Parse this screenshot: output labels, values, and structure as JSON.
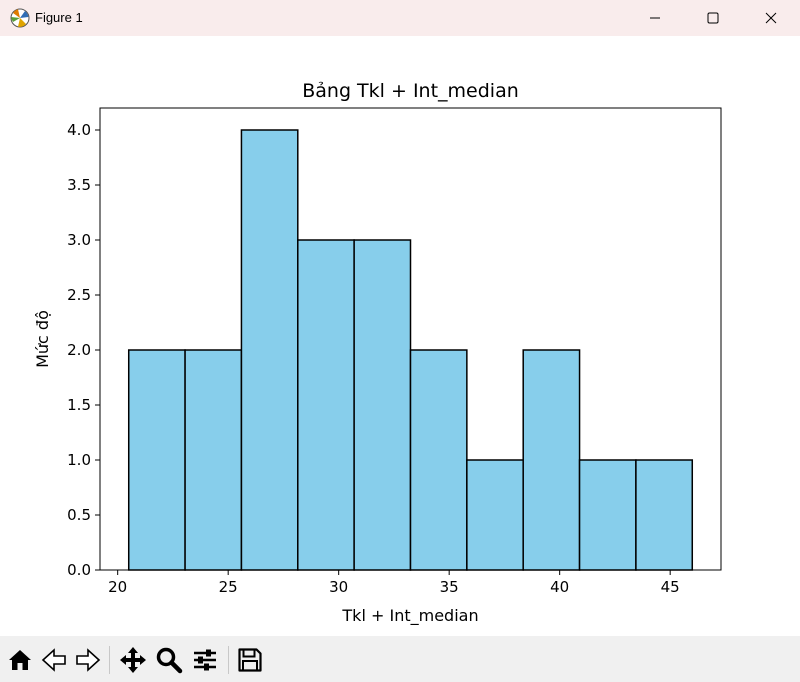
{
  "window": {
    "title": "Figure 1",
    "icons": {
      "app": "matplotlib-logo-icon",
      "minimize": "minimize-icon",
      "maximize": "maximize-icon",
      "close": "close-icon"
    }
  },
  "toolbar": {
    "buttons": [
      {
        "icon": "home-icon"
      },
      {
        "icon": "back-arrow-icon"
      },
      {
        "icon": "forward-arrow-icon"
      },
      {
        "icon": "pan-icon"
      },
      {
        "icon": "zoom-icon"
      },
      {
        "icon": "configure-subplots-icon"
      },
      {
        "icon": "save-icon"
      }
    ]
  },
  "colors": {
    "bar_fill": "#87ceeb",
    "bar_edge": "#000000",
    "titlebar": "#f9ecec",
    "toolbar": "#f0f0f0"
  },
  "chart_data": {
    "type": "bar",
    "title": "Bảng Tkl + Int_median",
    "xlabel": "Tkl + Int_median",
    "ylabel": "Mức độ",
    "bin_edges": [
      20.5,
      23.05,
      25.6,
      28.15,
      30.7,
      33.25,
      35.8,
      38.35,
      40.9,
      43.45,
      46.0
    ],
    "values": [
      2,
      2,
      4,
      3,
      3,
      2,
      1,
      2,
      1,
      1
    ],
    "xlim": [
      19.2,
      47.3
    ],
    "ylim": [
      0,
      4.2
    ],
    "xticks": [
      20,
      25,
      30,
      35,
      40,
      45
    ],
    "xtick_labels": [
      "20",
      "25",
      "30",
      "35",
      "40",
      "45"
    ],
    "yticks": [
      0,
      0.5,
      1,
      1.5,
      2,
      2.5,
      3,
      3.5,
      4
    ],
    "ytick_labels": [
      "0.0",
      "0.5",
      "1.0",
      "1.5",
      "2.0",
      "2.5",
      "3.0",
      "3.5",
      "4.0"
    ],
    "grid": false,
    "legend": false
  }
}
